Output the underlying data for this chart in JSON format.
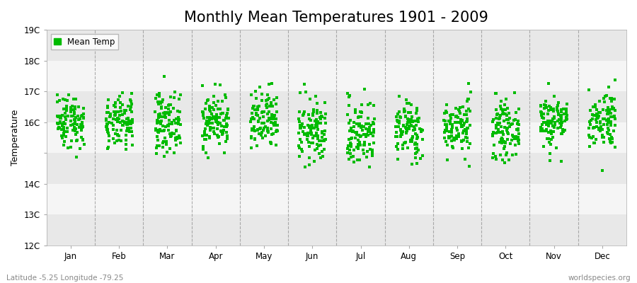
{
  "title": "Monthly Mean Temperatures 1901 - 2009",
  "ylabel": "Temperature",
  "xlabel": "",
  "ylim": [
    12,
    19
  ],
  "yticks": [
    12,
    13,
    14,
    15,
    16,
    17,
    18,
    19
  ],
  "ytick_labels": [
    "12C",
    "13C",
    "14C",
    "",
    "16C",
    "17C",
    "18C",
    "19C"
  ],
  "months": [
    "Jan",
    "Feb",
    "Mar",
    "Apr",
    "May",
    "Jun",
    "Jul",
    "Aug",
    "Sep",
    "Oct",
    "Nov",
    "Dec"
  ],
  "n_years": 109,
  "seed": 42,
  "mean_temps": [
    16.05,
    15.95,
    16.0,
    16.05,
    16.0,
    15.7,
    15.65,
    15.75,
    15.85,
    15.75,
    16.05,
    16.1
  ],
  "std_temps": [
    0.45,
    0.42,
    0.48,
    0.45,
    0.5,
    0.52,
    0.55,
    0.48,
    0.44,
    0.44,
    0.44,
    0.48
  ],
  "marker_color": "#00bb00",
  "marker": "s",
  "marker_size": 2.5,
  "legend_label": "Mean Temp",
  "bg_color": "#f5f5f5",
  "band_colors": [
    "#e8e8e8",
    "#f5f5f5"
  ],
  "footer_left": "Latitude -5.25 Longitude -79.25",
  "footer_right": "worldspecies.org",
  "title_fontsize": 15,
  "label_fontsize": 9,
  "tick_fontsize": 8.5,
  "footer_fontsize": 7.5
}
